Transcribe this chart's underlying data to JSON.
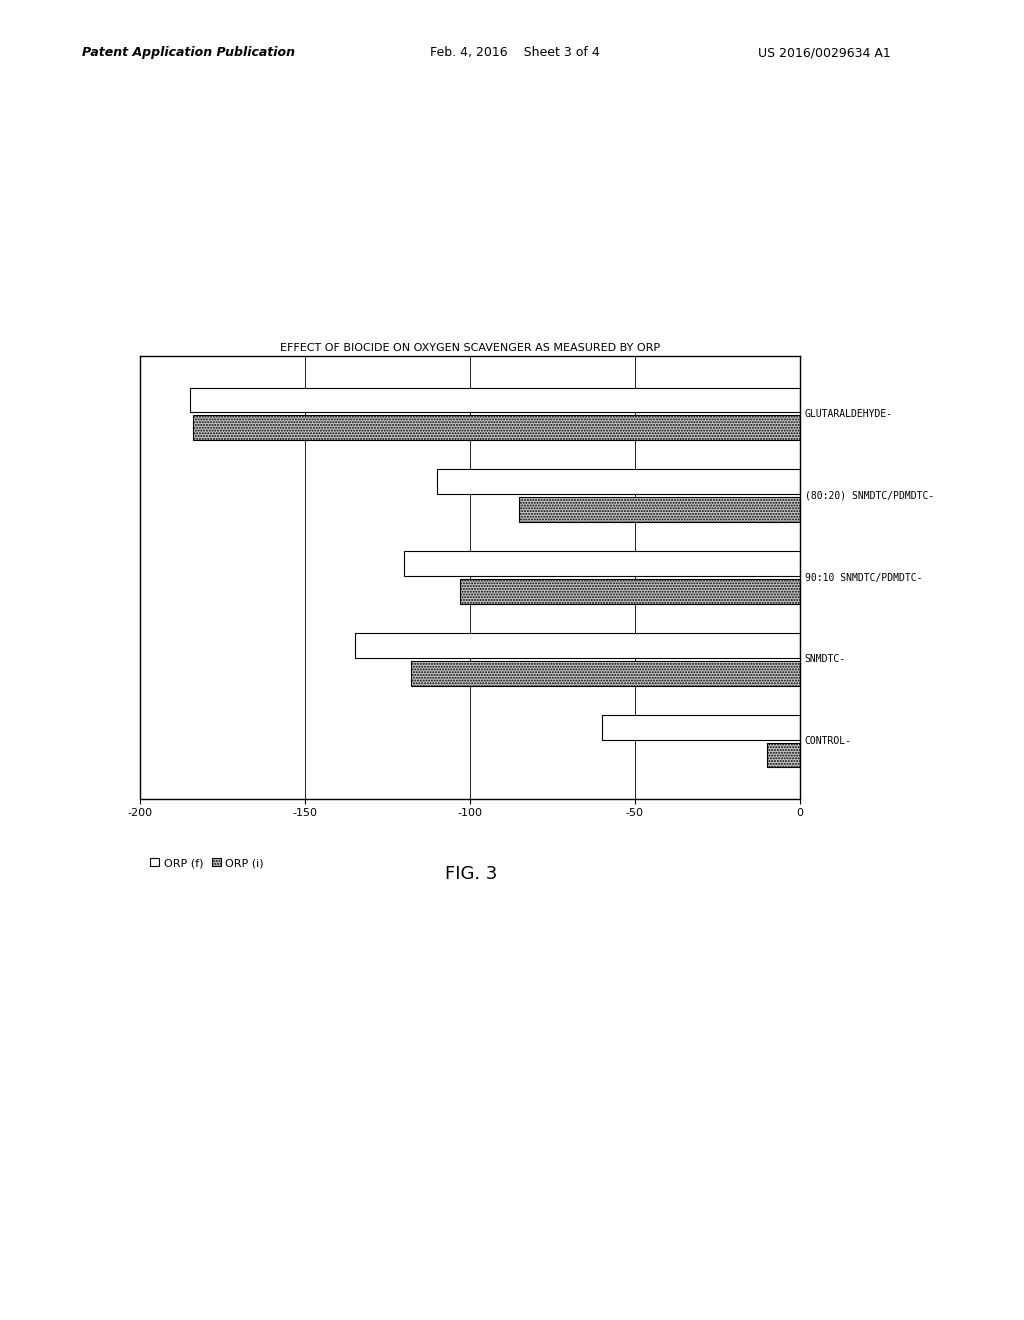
{
  "title": "EFFECT OF BIOCIDE ON OXYGEN SCAVENGER AS MEASURED BY ORP",
  "categories": [
    "GLUTARALDEHYDE",
    "(80:20) SNMDTC/PDMDTC",
    "90:10 SNMDTC/PDMDTC",
    "SNMDTC",
    "CONTROL"
  ],
  "orp_f": [
    -185,
    -110,
    -120,
    -135,
    -60
  ],
  "orp_i": [
    -184,
    -85,
    -103,
    -118,
    -10
  ],
  "xlim": [
    -200,
    0
  ],
  "xticks": [
    -200,
    -150,
    -100,
    -50,
    0
  ],
  "legend_labels": [
    "ORP (f)",
    "ORP (i)"
  ],
  "fig_title": "FIG. 3",
  "bar_height": 0.3,
  "background_color": "#ffffff",
  "bar_color_f": "#ffffff",
  "bar_color_i": "#c8c8c8",
  "bar_edgecolor": "#000000",
  "header_left": "Patent Application Publication",
  "header_mid": "Feb. 4, 2016    Sheet 3 of 4",
  "header_right": "US 2016/0029634 A1"
}
